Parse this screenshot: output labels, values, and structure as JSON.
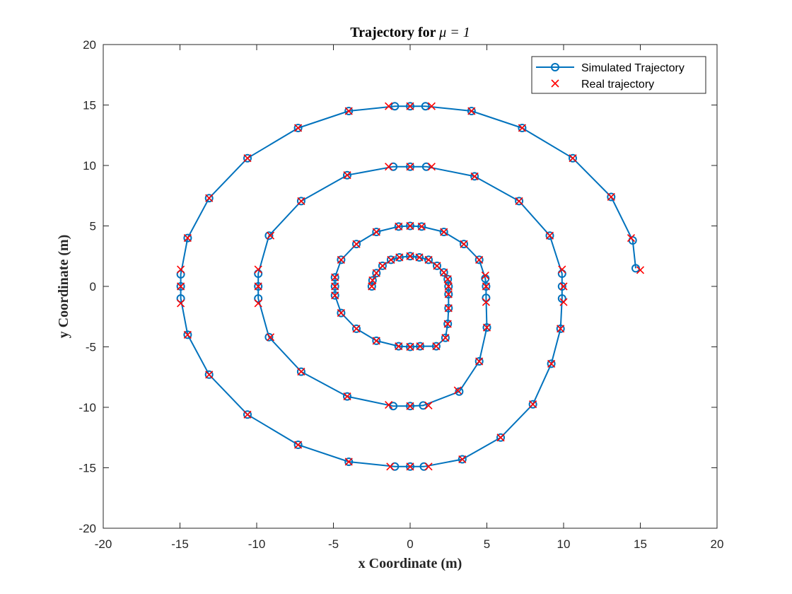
{
  "chart_data": {
    "type": "line",
    "title": {
      "prefix": "Trajectory for ",
      "math": "μ = 1"
    },
    "xlabel": "x Coordinate (m)",
    "ylabel": "y Coordinate (m)",
    "xlim": [
      -20,
      20
    ],
    "ylim": [
      -20,
      20
    ],
    "xticks": [
      -20,
      -15,
      -10,
      -5,
      0,
      5,
      10,
      15,
      20
    ],
    "yticks": [
      -20,
      -15,
      -10,
      -5,
      0,
      5,
      10,
      15,
      20
    ],
    "grid": false,
    "legend_placement": "top-right",
    "series": [
      {
        "name": "Simulated Trajectory",
        "style": "line-circle",
        "color": "#0072BD",
        "x": [
          -2.5,
          -2.45,
          -2.2,
          -1.8,
          -1.25,
          -0.7,
          0,
          0.6,
          1.2,
          1.75,
          2.2,
          2.45,
          2.5,
          2.5,
          2.5,
          2.45,
          2.3,
          1.7,
          0.65,
          0,
          -0.75,
          -2.2,
          -3.5,
          -4.5,
          -4.9,
          -4.9,
          -4.9,
          -4.5,
          -3.5,
          -2.2,
          -0.75,
          0,
          0.75,
          2.2,
          3.5,
          4.5,
          4.9,
          4.95,
          4.95,
          5.0,
          4.5,
          3.2,
          0.85,
          0,
          -1.1,
          -4.1,
          -7.1,
          -9.2,
          -9.9,
          -9.9,
          -9.9,
          -9.2,
          -7.1,
          -4.1,
          -1.1,
          0,
          1.05,
          4.2,
          7.1,
          9.1,
          9.9,
          9.9,
          9.9,
          9.8,
          9.2,
          8.0,
          5.9,
          3.4,
          0.9,
          0,
          -1.0,
          -4.0,
          -7.3,
          -10.6,
          -13.1,
          -14.5,
          -14.95,
          -14.95,
          -14.95,
          -14.5,
          -13.1,
          -10.6,
          -7.3,
          -4.0,
          -1.0,
          0,
          1.0,
          4.0,
          7.3,
          10.6,
          13.1,
          14.5,
          14.7
        ],
        "y": [
          0,
          0.5,
          1.1,
          1.7,
          2.2,
          2.4,
          2.5,
          2.4,
          2.2,
          1.7,
          1.15,
          0.6,
          0,
          -0.65,
          -1.8,
          -3.1,
          -4.25,
          -4.95,
          -4.95,
          -5.0,
          -4.95,
          -4.5,
          -3.5,
          -2.2,
          -0.75,
          0,
          0.75,
          2.2,
          3.5,
          4.5,
          4.95,
          5.0,
          4.95,
          4.5,
          3.5,
          2.2,
          0.65,
          0,
          -0.95,
          -3.4,
          -6.2,
          -8.7,
          -9.85,
          -9.9,
          -9.9,
          -9.1,
          -7.05,
          -4.2,
          -1.0,
          0,
          1.05,
          4.2,
          7.05,
          9.2,
          9.9,
          9.9,
          9.9,
          9.1,
          7.05,
          4.2,
          1.05,
          0,
          -1.0,
          -3.5,
          -6.4,
          -9.75,
          -12.5,
          -14.3,
          -14.9,
          -14.9,
          -14.9,
          -14.5,
          -13.1,
          -10.6,
          -7.3,
          -4.0,
          -1.0,
          0,
          1.0,
          4.0,
          7.3,
          10.6,
          13.1,
          14.5,
          14.9,
          14.9,
          14.9,
          14.5,
          13.1,
          10.6,
          7.4,
          3.8,
          1.5
        ]
      },
      {
        "name": "Real trajectory",
        "style": "x-marker",
        "color": "#FF0000",
        "x": [
          -2.5,
          -2.45,
          -2.2,
          -1.8,
          -1.25,
          -0.7,
          0,
          0.6,
          1.2,
          1.75,
          2.2,
          2.45,
          2.5,
          2.5,
          2.5,
          2.45,
          2.3,
          1.7,
          0.65,
          0,
          -0.75,
          -2.2,
          -3.5,
          -4.5,
          -4.9,
          -4.9,
          -4.9,
          -4.5,
          -3.5,
          -2.2,
          -0.75,
          0,
          0.75,
          2.2,
          3.5,
          4.5,
          4.9,
          4.95,
          4.95,
          5.0,
          4.5,
          3.1,
          1.2,
          0,
          -1.4,
          -4.1,
          -7.1,
          -9.1,
          -9.9,
          -9.9,
          -9.9,
          -9.1,
          -7.1,
          -4.1,
          -1.4,
          0,
          1.4,
          4.2,
          7.1,
          9.1,
          9.9,
          10.0,
          10.0,
          9.8,
          9.2,
          8.0,
          5.9,
          3.4,
          1.2,
          0,
          -1.3,
          -4.0,
          -7.3,
          -10.6,
          -13.1,
          -14.5,
          -14.95,
          -14.95,
          -14.95,
          -14.5,
          -13.1,
          -10.6,
          -7.3,
          -4.0,
          -1.4,
          0,
          1.4,
          4.0,
          7.3,
          10.6,
          13.1,
          14.4,
          15.0
        ],
        "y": [
          0,
          0.5,
          1.1,
          1.7,
          2.2,
          2.4,
          2.5,
          2.4,
          2.2,
          1.7,
          1.15,
          0.6,
          0,
          -0.65,
          -1.8,
          -3.1,
          -4.25,
          -4.95,
          -4.95,
          -5.0,
          -4.95,
          -4.5,
          -3.5,
          -2.2,
          -0.75,
          0,
          0.75,
          2.2,
          3.5,
          4.5,
          4.95,
          5.0,
          4.95,
          4.5,
          3.5,
          2.2,
          0.9,
          0,
          -1.3,
          -3.4,
          -6.2,
          -8.6,
          -9.85,
          -9.9,
          -9.8,
          -9.1,
          -7.05,
          -4.2,
          -1.4,
          0,
          1.4,
          4.2,
          7.05,
          9.2,
          9.9,
          9.9,
          9.9,
          9.1,
          7.05,
          4.2,
          1.4,
          0,
          -1.3,
          -3.5,
          -6.4,
          -9.75,
          -12.5,
          -14.3,
          -14.9,
          -14.9,
          -14.9,
          -14.5,
          -13.1,
          -10.6,
          -7.3,
          -4.0,
          -1.4,
          0,
          1.4,
          4.0,
          7.3,
          10.6,
          13.1,
          14.5,
          14.9,
          14.9,
          14.9,
          14.5,
          13.1,
          10.6,
          7.4,
          4.0,
          1.35
        ]
      }
    ]
  }
}
